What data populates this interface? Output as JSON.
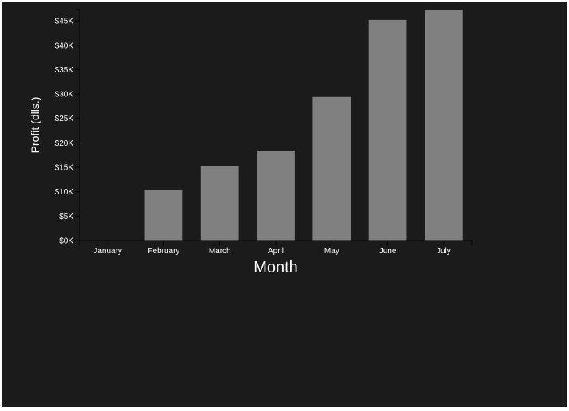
{
  "chart_data": {
    "type": "bar",
    "title": "",
    "xlabel": "Month",
    "ylabel": "Profit (dlls.)",
    "categories": [
      "January",
      "February",
      "March",
      "April",
      "May",
      "June",
      "July"
    ],
    "values": [
      0,
      10300,
      15300,
      18400,
      29400,
      45200,
      47300
    ],
    "ylim": [
      0,
      47300
    ],
    "yticks": [
      0,
      5000,
      10000,
      15000,
      20000,
      25000,
      30000,
      35000,
      40000,
      45000
    ],
    "ytick_labels": [
      "$0K",
      "$5K",
      "$10K",
      "$15K",
      "$20K",
      "$25K",
      "$30K",
      "$35K",
      "$40K",
      "$45K"
    ],
    "grid": false,
    "legend": "none"
  },
  "colors": {
    "background": "#1b1b1b",
    "bar": "#808080",
    "axis": "#000000",
    "text": "#ffffff"
  }
}
